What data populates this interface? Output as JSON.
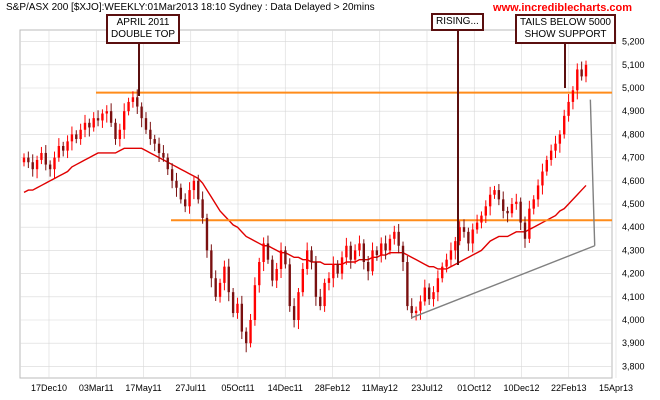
{
  "header": {
    "title": "S&P/ASX 200 [$XJO]:WEEKLY:01Mar2013 18:10 Sydney : Data Delayed > 20mins",
    "site": "www.incrediblecharts.com"
  },
  "annotations": [
    {
      "label": "APRIL 2011\nDOUBLE TOP"
    },
    {
      "label": "RISING..."
    },
    {
      "label": "TAILS BELOW 5000\nSHOW SUPPORT"
    }
  ],
  "colors": {
    "up_candle": "#ff0000",
    "down_candle": "#7a1010",
    "moving_average": "#e00000",
    "support_resistance": "#ff8c1a",
    "trendline": "#808080",
    "annotation_border": "#5a0f0f",
    "grid": "#d8d8d8"
  },
  "chart_data": {
    "type": "candlestick",
    "title": "S&P/ASX 200 [$XJO]:WEEKLY:01Mar2013 18:10 Sydney : Data Delayed > 20mins",
    "xlabel": "",
    "ylabel": "",
    "ylim": [
      3750,
      5250
    ],
    "y_ticks": [
      3800,
      3900,
      4000,
      4100,
      4200,
      4300,
      4400,
      4500,
      4600,
      4700,
      4800,
      4900,
      5000,
      5100,
      5200
    ],
    "x_tick_labels": [
      "17Dec10",
      "03Mar11",
      "17May11",
      "27Jul11",
      "05Oct11",
      "14Dec11",
      "28Feb12",
      "11May12",
      "23Jul12",
      "01Oct12",
      "10Dec12",
      "22Feb13",
      "15Apr13"
    ],
    "grid": true,
    "horizontal_lines": [
      4980,
      4430
    ],
    "closes": [
      4700,
      4680,
      4650,
      4690,
      4720,
      4670,
      4650,
      4700,
      4750,
      4730,
      4770,
      4800,
      4780,
      4820,
      4850,
      4830,
      4870,
      4860,
      4890,
      4900,
      4850,
      4780,
      4820,
      4900,
      4940,
      4960,
      4920,
      4870,
      4820,
      4780,
      4760,
      4720,
      4700,
      4650,
      4600,
      4570,
      4520,
      4490,
      4560,
      4600,
      4520,
      4440,
      4300,
      4180,
      4100,
      4160,
      4230,
      4120,
      4030,
      4070,
      3950,
      3900,
      4000,
      4150,
      4250,
      4330,
      4260,
      4170,
      4220,
      4300,
      4240,
      4060,
      4000,
      4120,
      4220,
      4300,
      4250,
      4100,
      4060,
      4160,
      4180,
      4240,
      4200,
      4270,
      4320,
      4260,
      4300,
      4330,
      4250,
      4210,
      4300,
      4280,
      4330,
      4300,
      4350,
      4380,
      4320,
      4250,
      4060,
      4030,
      4040,
      4080,
      4140,
      4090,
      4120,
      4180,
      4230,
      4260,
      4300,
      4340,
      4400,
      4380,
      4330,
      4390,
      4420,
      4450,
      4490,
      4540,
      4560,
      4520,
      4470,
      4460,
      4500,
      4510,
      4420,
      4350,
      4480,
      4520,
      4580,
      4640,
      4690,
      4730,
      4760,
      4800,
      4880,
      4940,
      4990,
      5080,
      5050,
      5100
    ],
    "moving_average_y": [
      4550,
      4560,
      4560,
      4570,
      4580,
      4590,
      4600,
      4610,
      4620,
      4630,
      4640,
      4660,
      4670,
      4680,
      4690,
      4700,
      4710,
      4720,
      4720,
      4720,
      4720,
      4720,
      4730,
      4740,
      4740,
      4740,
      4740,
      4740,
      4730,
      4720,
      4710,
      4700,
      4690,
      4680,
      4670,
      4660,
      4650,
      4640,
      4630,
      4620,
      4610,
      4590,
      4560,
      4530,
      4500,
      4470,
      4450,
      4430,
      4410,
      4400,
      4380,
      4360,
      4350,
      4340,
      4330,
      4320,
      4320,
      4310,
      4300,
      4290,
      4290,
      4280,
      4270,
      4270,
      4260,
      4260,
      4250,
      4250,
      4250,
      4240,
      4240,
      4240,
      4240,
      4240,
      4250,
      4250,
      4250,
      4260,
      4260,
      4260,
      4270,
      4270,
      4280,
      4280,
      4290,
      4290,
      4290,
      4290,
      4280,
      4270,
      4260,
      4250,
      4240,
      4230,
      4230,
      4220,
      4220,
      4220,
      4230,
      4240,
      4250,
      4260,
      4270,
      4280,
      4290,
      4300,
      4320,
      4340,
      4350,
      4360,
      4360,
      4360,
      4370,
      4380,
      4380,
      4380,
      4390,
      4400,
      4410,
      4420,
      4430,
      4440,
      4450,
      4470,
      4480,
      4500,
      4520,
      4540,
      4560,
      4580
    ],
    "trendline": [
      [
        89,
        4010
      ],
      [
        131,
        4320
      ],
      [
        130,
        4950
      ]
    ]
  }
}
